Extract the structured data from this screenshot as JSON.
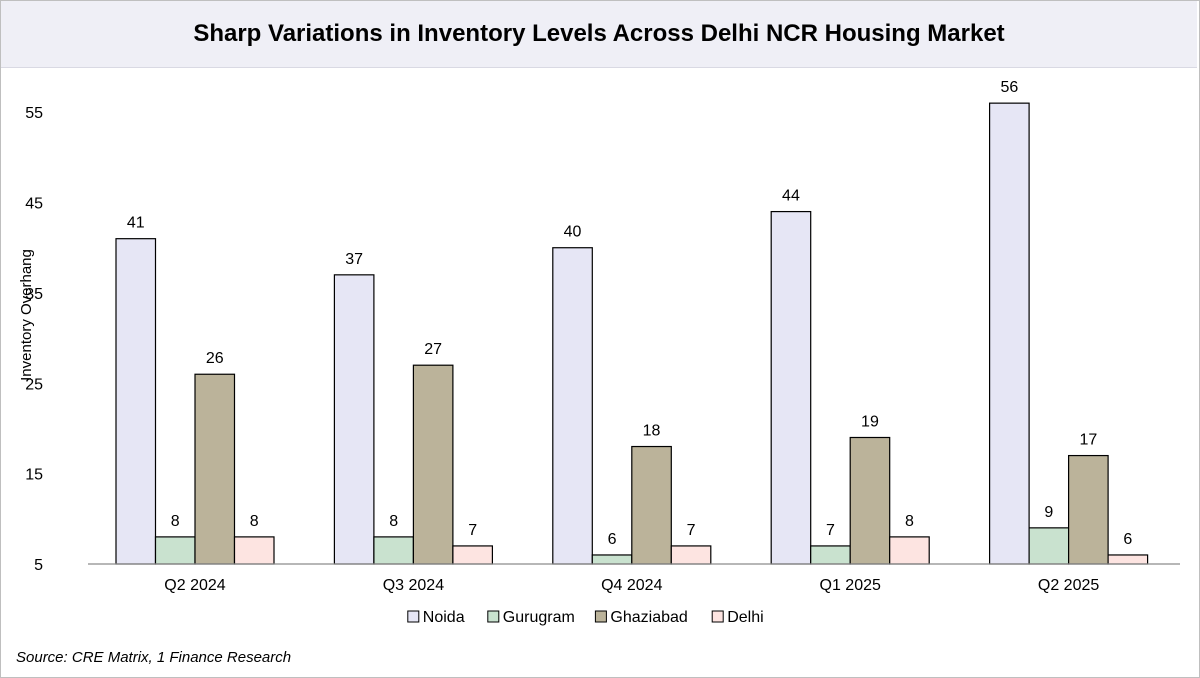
{
  "title": "Sharp Variations in Inventory Levels Across Delhi NCR Housing Market",
  "source": "Source: CRE Matrix, 1 Finance Research",
  "chart_data": {
    "type": "bar",
    "title": "Sharp Variations in Inventory Levels Across Delhi NCR Housing Market",
    "xlabel": "",
    "ylabel": "Inventory Overhang",
    "ylim": [
      5,
      60
    ],
    "yticks": [
      5,
      15,
      25,
      35,
      45,
      55
    ],
    "grid": false,
    "legend_position": "bottom",
    "categories": [
      "Q2 2024",
      "Q3 2024",
      "Q4 2024",
      "Q1 2025",
      "Q2 2025"
    ],
    "series": [
      {
        "name": "Noida",
        "color": "#e6e6f5",
        "values": [
          41,
          37,
          40,
          44,
          56
        ]
      },
      {
        "name": "Gurugram",
        "color": "#c9e2cf",
        "values": [
          8,
          8,
          6,
          7,
          9
        ]
      },
      {
        "name": "Ghaziabad",
        "color": "#bbb39a",
        "values": [
          26,
          27,
          18,
          19,
          17
        ]
      },
      {
        "name": "Delhi",
        "color": "#fde4e1",
        "values": [
          8,
          7,
          7,
          8,
          6
        ]
      }
    ]
  }
}
